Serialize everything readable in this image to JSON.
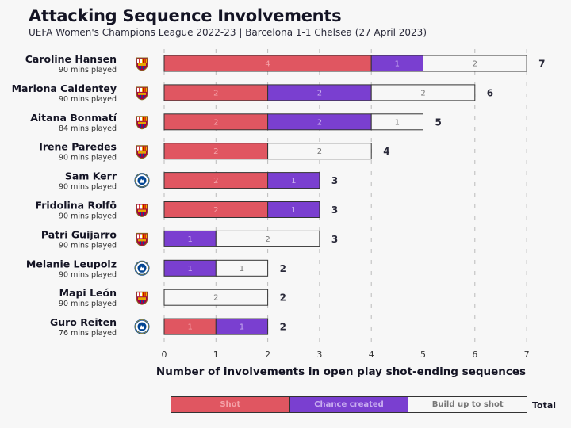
{
  "header": {
    "title": "Attacking Sequence Involvements",
    "subtitle": "UEFA Women's Champions League 2022-23 | Barcelona 1-1 Chelsea (27 April 2023)"
  },
  "colors": {
    "shot": "#e05661",
    "shot_text": "#f4a3a9",
    "chance": "#7a3fd0",
    "chance_text": "#c9aef0",
    "build": "#f7f7f7",
    "build_text": "#777777",
    "border": "#333333",
    "grid": "#bbbbbb"
  },
  "chart_data": {
    "type": "bar",
    "orientation": "horizontal",
    "stacked": true,
    "title": "Attacking Sequence Involvements",
    "subtitle": "UEFA Women's Champions League 2022-23 | Barcelona 1-1 Chelsea (27 April 2023)",
    "xlabel": "Number of involvements in open play shot-ending sequences",
    "ylabel": "",
    "xlim": [
      0,
      7
    ],
    "xticks": [
      0,
      1,
      2,
      3,
      4,
      5,
      6,
      7
    ],
    "grid": "vertical dashed",
    "legend": {
      "position": "bottom",
      "entries": [
        "Shot",
        "Chance created",
        "Build up to shot"
      ],
      "total_label": "Total"
    },
    "players": [
      {
        "name": "Caroline Hansen",
        "mins": "90 mins played",
        "team": "Barcelona"
      },
      {
        "name": "Mariona Caldentey",
        "mins": "90 mins played",
        "team": "Barcelona"
      },
      {
        "name": "Aitana Bonmatí",
        "mins": "84 mins played",
        "team": "Barcelona"
      },
      {
        "name": "Irene Paredes",
        "mins": "90 mins played",
        "team": "Barcelona"
      },
      {
        "name": "Sam Kerr",
        "mins": "90 mins played",
        "team": "Chelsea"
      },
      {
        "name": "Fridolina Rolfö",
        "mins": "90 mins played",
        "team": "Barcelona"
      },
      {
        "name": "Patri Guijarro",
        "mins": "90 mins played",
        "team": "Barcelona"
      },
      {
        "name": "Melanie Leupolz",
        "mins": "90 mins played",
        "team": "Chelsea"
      },
      {
        "name": "Mapi León",
        "mins": "90 mins played",
        "team": "Barcelona"
      },
      {
        "name": "Guro Reiten",
        "mins": "76 mins played",
        "team": "Chelsea"
      }
    ],
    "series": [
      {
        "name": "Shot",
        "values": [
          4,
          2,
          2,
          2,
          2,
          2,
          0,
          0,
          0,
          1
        ]
      },
      {
        "name": "Chance created",
        "values": [
          1,
          2,
          2,
          0,
          1,
          1,
          1,
          1,
          0,
          1
        ]
      },
      {
        "name": "Build up to shot",
        "values": [
          2,
          2,
          1,
          2,
          0,
          0,
          2,
          1,
          2,
          0
        ]
      }
    ],
    "totals": [
      7,
      6,
      5,
      4,
      3,
      3,
      3,
      2,
      2,
      2
    ]
  },
  "legend": {
    "shot": "Shot",
    "chance": "Chance created",
    "build": "Build up to shot",
    "total": "Total"
  }
}
